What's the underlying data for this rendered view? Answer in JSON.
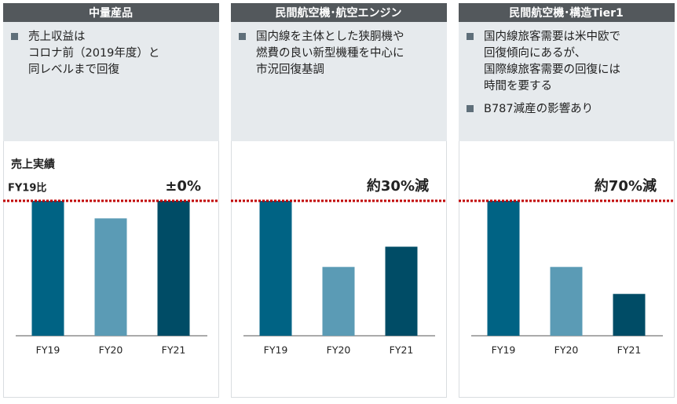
{
  "chart_data": [
    {
      "type": "bar",
      "title": "中量産品",
      "notes": [
        [
          "売上収益は",
          "コロナ前（2019年度）と",
          "同レベルまで回復"
        ]
      ],
      "label": "売上実績",
      "baseline_label": "FY19比",
      "annotation": "±0%",
      "categories": [
        "FY19",
        "FY20",
        "FY21"
      ],
      "values": [
        100,
        87,
        100
      ],
      "colors": [
        "#006384",
        "#5b9bb5",
        "#004c66"
      ],
      "ylim": [
        0,
        100
      ]
    },
    {
      "type": "bar",
      "title": "民間航空機･航空エンジン",
      "notes": [
        [
          "国内線を主体とした狭胴機や",
          "燃費の良い新型機種を中心に",
          "市況回復基調"
        ]
      ],
      "annotation": "約30%減",
      "categories": [
        "FY19",
        "FY20",
        "FY21"
      ],
      "values": [
        100,
        51,
        66
      ],
      "colors": [
        "#006384",
        "#5b9bb5",
        "#004c66"
      ],
      "ylim": [
        0,
        100
      ]
    },
    {
      "type": "bar",
      "title": "民間航空機･構造Tier1",
      "notes": [
        [
          "国内線旅客需要は米中欧で",
          "回復傾向にあるが、",
          "国際線旅客需要の回復には",
          "時間を要する"
        ],
        [
          "B787減産の影響あり"
        ]
      ],
      "annotation": "約70%減",
      "categories": [
        "FY19",
        "FY20",
        "FY21"
      ],
      "values": [
        100,
        51,
        31
      ],
      "colors": [
        "#006384",
        "#5b9bb5",
        "#004c66"
      ],
      "ylim": [
        0,
        100
      ]
    }
  ]
}
